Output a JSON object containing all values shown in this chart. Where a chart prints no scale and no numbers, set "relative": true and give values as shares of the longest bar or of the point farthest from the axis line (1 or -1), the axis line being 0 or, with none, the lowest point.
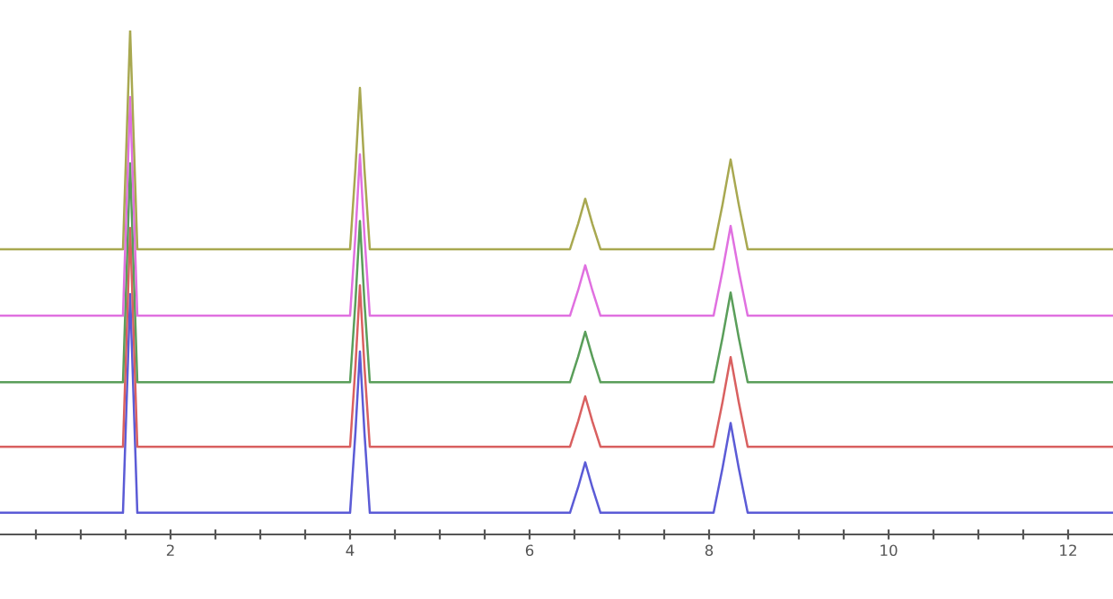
{
  "chart_data": {
    "type": "line",
    "relative": true,
    "tick_labels": "x",
    "x": [
      0.1,
      1.47,
      1.51,
      1.55,
      1.59,
      1.63,
      4.0,
      4.06,
      4.11,
      4.16,
      4.22,
      6.45,
      6.54,
      6.62,
      6.7,
      6.79,
      8.05,
      8.15,
      8.24,
      8.33,
      8.43,
      12.5
    ],
    "xlim": [
      0.1,
      12.5
    ],
    "xticks": [
      {
        "value": 0.5,
        "label": null
      },
      {
        "value": 1,
        "label": null
      },
      {
        "value": 1.5,
        "label": null
      },
      2,
      {
        "value": 2.5,
        "label": null
      },
      {
        "value": 3,
        "label": null
      },
      {
        "value": 3.5,
        "label": null
      },
      4,
      {
        "value": 4.5,
        "label": null
      },
      {
        "value": 5,
        "label": null
      },
      {
        "value": 5.5,
        "label": null
      },
      6,
      {
        "value": 6.5,
        "label": null
      },
      {
        "value": 7,
        "label": null
      },
      {
        "value": 7.5,
        "label": null
      },
      8,
      {
        "value": 8.5,
        "label": null
      },
      {
        "value": 9,
        "label": null
      },
      {
        "value": 9.5,
        "label": null
      },
      10,
      {
        "value": 10.5,
        "label": null
      },
      {
        "value": 11,
        "label": null
      },
      {
        "value": 11.5,
        "label": null
      },
      12
    ],
    "series": [
      {
        "color": "#5b5bd6",
        "values": [
          0.043,
          0.043,
          0.26,
          0.477,
          0.26,
          0.043,
          0.043,
          0.203,
          0.363,
          0.203,
          0.043,
          0.043,
          0.093,
          0.143,
          0.093,
          0.043,
          0.043,
          0.132,
          0.221,
          0.132,
          0.043,
          0.043
        ]
      },
      {
        "color": "#d96060",
        "values": [
          0.174,
          0.174,
          0.391,
          0.608,
          0.391,
          0.174,
          0.174,
          0.334,
          0.494,
          0.334,
          0.174,
          0.174,
          0.224,
          0.274,
          0.224,
          0.174,
          0.174,
          0.263,
          0.352,
          0.263,
          0.174,
          0.174
        ]
      },
      {
        "color": "#5a9e5a",
        "values": [
          0.302,
          0.302,
          0.519,
          0.736,
          0.519,
          0.302,
          0.302,
          0.462,
          0.622,
          0.462,
          0.302,
          0.302,
          0.352,
          0.402,
          0.352,
          0.302,
          0.302,
          0.391,
          0.48,
          0.391,
          0.302,
          0.302
        ]
      },
      {
        "color": "#e070e0",
        "values": [
          0.434,
          0.434,
          0.651,
          0.868,
          0.651,
          0.434,
          0.434,
          0.594,
          0.754,
          0.594,
          0.434,
          0.434,
          0.484,
          0.534,
          0.484,
          0.434,
          0.434,
          0.523,
          0.612,
          0.523,
          0.434,
          0.434
        ]
      },
      {
        "color": "#a8a850",
        "values": [
          0.566,
          0.566,
          0.783,
          1.0,
          0.783,
          0.566,
          0.566,
          0.726,
          0.886,
          0.726,
          0.566,
          0.566,
          0.616,
          0.666,
          0.616,
          0.566,
          0.566,
          0.655,
          0.744,
          0.655,
          0.566,
          0.566
        ]
      }
    ]
  }
}
